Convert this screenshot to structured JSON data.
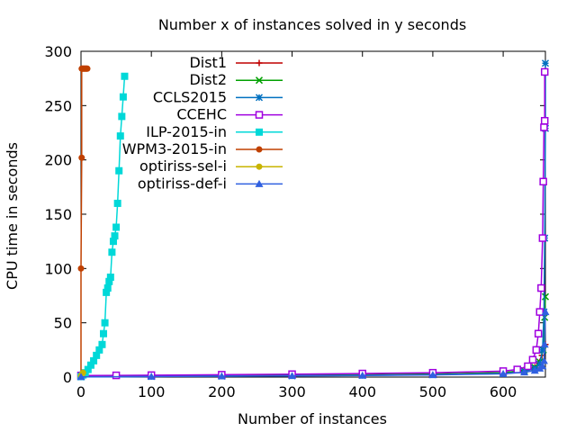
{
  "chart_data": {
    "type": "line",
    "title": "Number x of instances solved in y seconds",
    "xlabel": "Number of instances",
    "ylabel": "CPU time in seconds",
    "xlim": [
      0,
      660
    ],
    "ylim": [
      0,
      300
    ],
    "xticks": [
      0,
      100,
      200,
      300,
      400,
      500,
      600
    ],
    "yticks": [
      0,
      50,
      100,
      150,
      200,
      250,
      300
    ],
    "grid": false,
    "legend_position": "top-center",
    "series": [
      {
        "name": "Dist1",
        "color": "#c00000",
        "marker": "plus",
        "x": [
          0,
          100,
          200,
          300,
          400,
          500,
          600,
          630,
          645,
          650,
          655,
          658,
          660
        ],
        "y": [
          0.3,
          0.8,
          1.2,
          1.6,
          2.1,
          2.8,
          4,
          6,
          9,
          13,
          20,
          28,
          30
        ]
      },
      {
        "name": "Dist2",
        "color": "#00a000",
        "marker": "x",
        "x": [
          0,
          100,
          200,
          300,
          400,
          500,
          600,
          630,
          645,
          652,
          657,
          659,
          660
        ],
        "y": [
          0.3,
          0.7,
          1.1,
          1.5,
          2.0,
          2.7,
          4,
          6,
          9,
          14,
          25,
          55,
          74
        ]
      },
      {
        "name": "CCLS2015",
        "color": "#0070c0",
        "marker": "star",
        "x": [
          0,
          100,
          200,
          300,
          400,
          500,
          600,
          630,
          645,
          652,
          656,
          658,
          659,
          660,
          660
        ],
        "y": [
          0.2,
          0.5,
          0.9,
          1.2,
          1.6,
          2.2,
          3.2,
          5,
          8,
          12,
          25,
          60,
          128,
          229,
          289
        ]
      },
      {
        "name": "CCEHC",
        "color": "#a000e0",
        "marker": "square",
        "x": [
          0,
          50,
          100,
          200,
          300,
          400,
          500,
          600,
          620,
          635,
          642,
          647,
          650,
          652,
          654,
          656,
          657,
          658,
          659,
          659
        ],
        "y": [
          1.5,
          1.6,
          1.8,
          2.2,
          2.7,
          3.3,
          4.0,
          5.5,
          7,
          10,
          16,
          25,
          40,
          60,
          82,
          128,
          180,
          230,
          236,
          281
        ]
      },
      {
        "name": "ILP-2015-in",
        "color": "#00d8d8",
        "marker": "square-filled",
        "x": [
          0,
          3,
          6,
          10,
          14,
          18,
          22,
          26,
          30,
          32,
          34,
          36,
          38,
          40,
          42,
          44,
          46,
          48,
          50,
          52,
          54,
          56,
          58,
          60,
          62
        ],
        "y": [
          0.5,
          2,
          4,
          7,
          11,
          15,
          20,
          25,
          30,
          40,
          50,
          78,
          82,
          88,
          92,
          115,
          125,
          130,
          138,
          160,
          190,
          222,
          240,
          258,
          277
        ]
      },
      {
        "name": "WPM3-2015-in",
        "color": "#c04000",
        "marker": "circle-filled",
        "x": [
          0,
          0,
          1,
          1,
          2,
          3,
          4,
          5,
          6,
          7,
          8,
          9
        ],
        "y": [
          0.5,
          100,
          202,
          284,
          284,
          284,
          284,
          284,
          284,
          284,
          284,
          284
        ]
      },
      {
        "name": "optiriss-sel-i",
        "color": "#c8b400",
        "marker": "circle-filled",
        "x": [
          0,
          1,
          2,
          3
        ],
        "y": [
          1,
          2,
          3,
          4
        ]
      },
      {
        "name": "optiriss-def-i",
        "color": "#3060e0",
        "marker": "triangle",
        "x": [
          0,
          100,
          200,
          300,
          400,
          500,
          600,
          630,
          645,
          652,
          656,
          658,
          659,
          660
        ],
        "y": [
          0.2,
          0.5,
          0.8,
          1.1,
          1.5,
          2.0,
          3,
          4.5,
          6,
          8,
          10,
          15,
          30,
          60
        ]
      }
    ]
  }
}
